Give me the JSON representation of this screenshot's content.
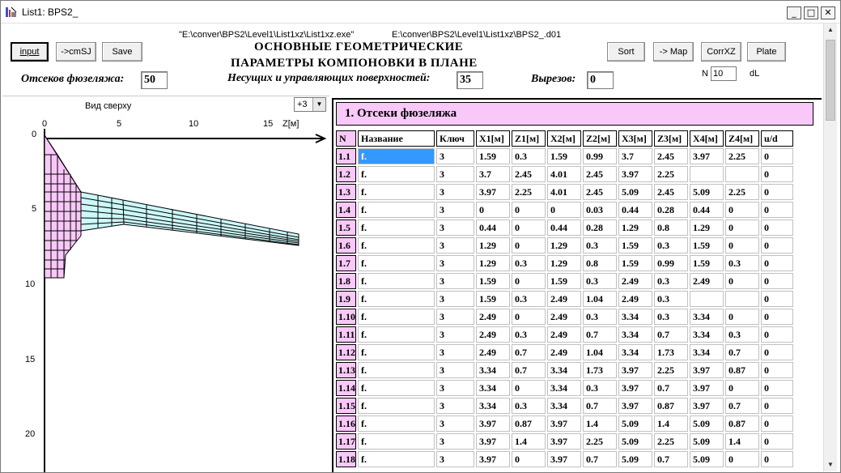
{
  "window": {
    "title": "List1: BPS2_",
    "minimize_glyph": "_",
    "maximize_glyph": "□",
    "close_glyph": "✕"
  },
  "toolbar": {
    "input_label": "input",
    "cmsj_label": "->cmSJ",
    "save_label": "Save",
    "sort_label": "Sort",
    "map_label": "-> Map",
    "corrxz_label": "CorrXZ",
    "plate_label": "Plate",
    "exe_path": "\"E:\\conver\\BPS2\\Level1\\List1xz\\List1xz.exe\"",
    "data_path": "E:\\conver\\BPS2\\Level1\\List1xz\\BPS2_.d01",
    "heading_line1": "ОСНОВНЫЕ  ГЕОМЕТРИЧЕСКИЕ",
    "heading_line2": "ПАРАМЕТРЫ  КОМПОНОВКИ  В  ПЛАНЕ",
    "n_label": "N",
    "n_value": "10",
    "dl_label": "dL"
  },
  "counts": {
    "fuselage_label": "Отсеков фюзеляжа:",
    "fuselage_value": "50",
    "surfaces_label": "Несущих и управляющих поверхностей:",
    "surfaces_value": "35",
    "cutouts_label": "Вырезов:",
    "cutouts_value": "0"
  },
  "plot": {
    "title": "Вид сверху",
    "combo_value": "+3",
    "x_ticks": [
      "0",
      "5",
      "10",
      "15"
    ],
    "x_axis_label": "Z[м]",
    "y_ticks": [
      "0",
      "5",
      "10",
      "15",
      "20"
    ],
    "fuselage_color": "#f8c8f8",
    "wing_color": "#ccf8f8"
  },
  "table": {
    "section_title": "1. Отсеки фюзеляжа",
    "header_color": "#f8c8f8",
    "selection_color": "#3399ff",
    "columns": [
      "N",
      "Название",
      "Ключ",
      "X1[м]",
      "Z1[м]",
      "X2[м]",
      "Z2[м]",
      "X3[м]",
      "Z3[м]",
      "X4[м]",
      "Z4[м]",
      "u/d"
    ],
    "rows": [
      [
        "1.1",
        "f.",
        "3",
        "1.59",
        "0.3",
        "1.59",
        "0.99",
        "3.7",
        "2.45",
        "3.97",
        "2.25",
        "0"
      ],
      [
        "1.2",
        "f.",
        "3",
        "3.7",
        "2.45",
        "4.01",
        "2.45",
        "3.97",
        "2.25",
        "",
        "",
        "0"
      ],
      [
        "1.3",
        "f.",
        "3",
        "3.97",
        "2.25",
        "4.01",
        "2.45",
        "5.09",
        "2.45",
        "5.09",
        "2.25",
        "0"
      ],
      [
        "1.4",
        "f.",
        "3",
        "0",
        "0",
        "0",
        "0.03",
        "0.44",
        "0.28",
        "0.44",
        "0",
        "0"
      ],
      [
        "1.5",
        "f.",
        "3",
        "0.44",
        "0",
        "0.44",
        "0.28",
        "1.29",
        "0.8",
        "1.29",
        "0",
        "0"
      ],
      [
        "1.6",
        "f.",
        "3",
        "1.29",
        "0",
        "1.29",
        "0.3",
        "1.59",
        "0.3",
        "1.59",
        "0",
        "0"
      ],
      [
        "1.7",
        "f.",
        "3",
        "1.29",
        "0.3",
        "1.29",
        "0.8",
        "1.59",
        "0.99",
        "1.59",
        "0.3",
        "0"
      ],
      [
        "1.8",
        "f.",
        "3",
        "1.59",
        "0",
        "1.59",
        "0.3",
        "2.49",
        "0.3",
        "2.49",
        "0",
        "0"
      ],
      [
        "1.9",
        "f.",
        "3",
        "1.59",
        "0.3",
        "2.49",
        "1.04",
        "2.49",
        "0.3",
        "",
        "",
        "0"
      ],
      [
        "1.10",
        "f.",
        "3",
        "2.49",
        "0",
        "2.49",
        "0.3",
        "3.34",
        "0.3",
        "3.34",
        "0",
        "0"
      ],
      [
        "1.11",
        "f.",
        "3",
        "2.49",
        "0.3",
        "2.49",
        "0.7",
        "3.34",
        "0.7",
        "3.34",
        "0.3",
        "0"
      ],
      [
        "1.12",
        "f.",
        "3",
        "2.49",
        "0.7",
        "2.49",
        "1.04",
        "3.34",
        "1.73",
        "3.34",
        "0.7",
        "0"
      ],
      [
        "1.13",
        "f.",
        "3",
        "3.34",
        "0.7",
        "3.34",
        "1.73",
        "3.97",
        "2.25",
        "3.97",
        "0.87",
        "0"
      ],
      [
        "1.14",
        "f.",
        "3",
        "3.34",
        "0",
        "3.34",
        "0.3",
        "3.97",
        "0.7",
        "3.97",
        "0",
        "0"
      ],
      [
        "1.15",
        "f.",
        "3",
        "3.34",
        "0.3",
        "3.34",
        "0.7",
        "3.97",
        "0.87",
        "3.97",
        "0.7",
        "0"
      ],
      [
        "1.16",
        "f.",
        "3",
        "3.97",
        "0.87",
        "3.97",
        "1.4",
        "5.09",
        "1.4",
        "5.09",
        "0.87",
        "0"
      ],
      [
        "1.17",
        "f.",
        "3",
        "3.97",
        "1.4",
        "3.97",
        "2.25",
        "5.09",
        "2.25",
        "5.09",
        "1.4",
        "0"
      ],
      [
        "1.18",
        "f.",
        "3",
        "3.97",
        "0",
        "3.97",
        "0.7",
        "5.09",
        "0.7",
        "5.09",
        "0",
        "0"
      ]
    ]
  }
}
